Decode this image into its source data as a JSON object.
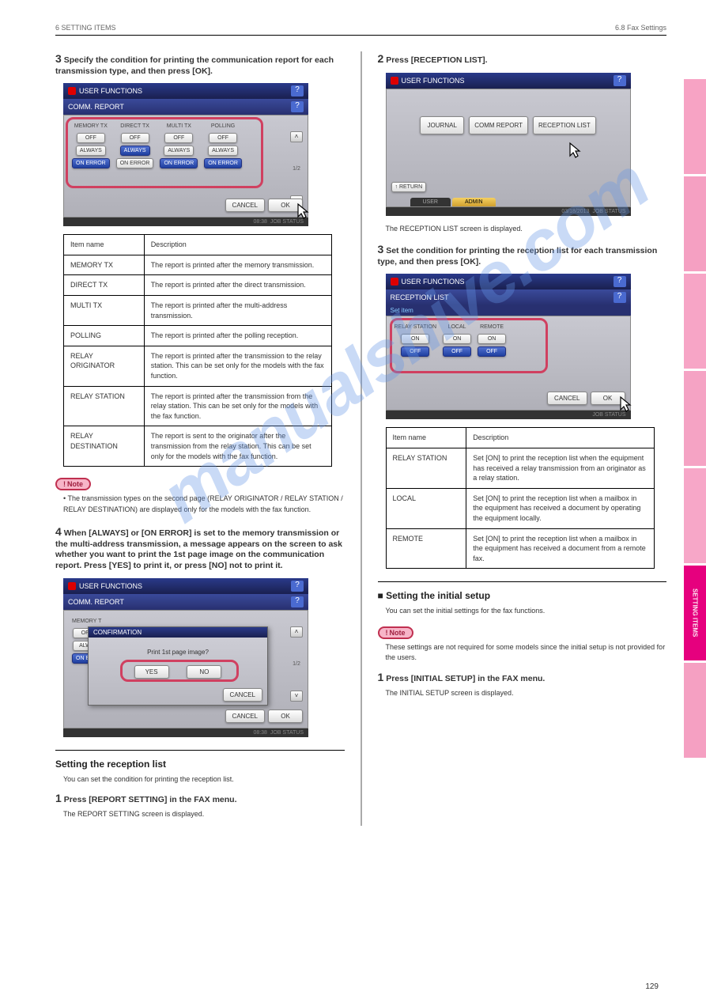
{
  "header": {
    "left": "6 SETTING ITEMS",
    "right": "6.8 Fax Settings"
  },
  "page_number": "129",
  "watermark": "manualshive.com",
  "tabs": [
    "",
    "",
    "",
    "",
    "",
    "SETTING ITEMS",
    ""
  ],
  "left": {
    "step3": {
      "num": "3",
      "text": "Specify the condition for printing the communication report for each transmission type, and then press [OK].",
      "shot": {
        "title": "USER FUNCTIONS",
        "subtitle": "COMM. REPORT",
        "cols": [
          {
            "h": "MEMORY TX",
            "b": [
              "OFF",
              "ALWAYS",
              "ON ERROR"
            ],
            "sel": 2
          },
          {
            "h": "DIRECT TX",
            "b": [
              "OFF",
              "ALWAYS",
              "ON ERROR"
            ],
            "sel": 1
          },
          {
            "h": "MULTI TX",
            "b": [
              "OFF",
              "ALWAYS",
              "ON ERROR"
            ],
            "sel": 2
          },
          {
            "h": "POLLING",
            "b": [
              "OFF",
              "ALWAYS",
              "ON ERROR"
            ],
            "sel": 2
          }
        ],
        "pager": "1/2",
        "cancel": "CANCEL",
        "ok": "OK",
        "footer_time": "08:38",
        "footer_status": "JOB STATUS"
      },
      "table": [
        [
          "Item name",
          "Description"
        ],
        [
          "MEMORY TX",
          "The report is printed after the memory transmission."
        ],
        [
          "DIRECT TX",
          "The report is printed after the direct transmission."
        ],
        [
          "MULTI TX",
          "The report is printed after the multi-address transmission."
        ],
        [
          "POLLING",
          "The report is printed after the polling reception."
        ],
        [
          "RELAY ORIGINATOR",
          "The report is printed after the transmission to the relay station. This can be set only for the models with the fax function."
        ],
        [
          "RELAY STATION",
          "The report is printed after the transmission from the relay station. This can be set only for the models with the fax function."
        ],
        [
          "RELAY DESTINATION",
          "The report is sent to the originator after the transmission from the relay station. This can be set only for the models with the fax function."
        ]
      ],
      "note_label": "Note",
      "note_body": "• The transmission types on the second page (RELAY ORIGINATOR / RELAY STATION / RELAY DESTINATION) are displayed only for the models with the fax function."
    },
    "step4": {
      "num": "4",
      "text": "When [ALWAYS] or [ON ERROR] is set to the memory transmission or the multi-address transmission, a message appears on the screen to ask whether you want to print the 1st page image on the communication report. Press [YES] to print it, or press [NO] not to print it.",
      "shot": {
        "title": "USER FUNCTIONS",
        "subtitle": "COMM. REPORT",
        "conf_title": "CONFIRMATION",
        "conf_msg": "Print 1st page image?",
        "yes": "YES",
        "no": "NO",
        "cancel": "CANCEL",
        "ok": "OK",
        "cols_partial": {
          "h": "MEMORY T",
          "b": [
            "OFF",
            "ALWA",
            "ON ERR"
          ]
        },
        "footer_time": "08:38",
        "footer_status": "JOB STATUS"
      }
    },
    "recep_h": "Setting the reception list",
    "recep_p": "You can set the condition for printing the reception list.",
    "step1": {
      "num": "1",
      "text": "Press [REPORT SETTING] in the FAX menu.",
      "sub": "The REPORT SETTING screen is displayed."
    }
  },
  "right": {
    "step2": {
      "num": "2",
      "text": "Press [RECEPTION LIST].",
      "shot": {
        "title": "USER FUNCTIONS",
        "btns": [
          "JOURNAL",
          "COMM REPORT",
          "RECEPTION LIST"
        ],
        "return": "RETURN",
        "tab_user": "USER",
        "tab_admin": "ADMIN",
        "footer_date": "03/18/2013",
        "footer_status": "JOB STATUS"
      },
      "sub": "The RECEPTION LIST screen is displayed."
    },
    "step3": {
      "num": "3",
      "text": "Set the condition for printing the reception list for each transmission type, and then press [OK].",
      "shot": {
        "title": "USER FUNCTIONS",
        "subtitle": "RECEPTION LIST",
        "setitem": "Set item",
        "cols": [
          {
            "h": "RELAY STATION",
            "b": [
              "ON",
              "OFF"
            ],
            "sel": 1
          },
          {
            "h": "LOCAL",
            "b": [
              "ON",
              "OFF"
            ],
            "sel": 1
          },
          {
            "h": "REMOTE",
            "b": [
              "ON",
              "OFF"
            ],
            "sel": 1
          }
        ],
        "cancel": "CANCEL",
        "ok": "OK",
        "footer_status": "JOB STATUS"
      },
      "table": [
        [
          "Item name",
          "Description"
        ],
        [
          "RELAY STATION",
          "Set [ON] to print the reception list when the equipment has received a relay transmission from an originator as a relay station."
        ],
        [
          "LOCAL",
          "Set [ON] to print the reception list when a mailbox in the equipment has received a document by operating the equipment locally."
        ],
        [
          "REMOTE",
          "Set [ON] to print the reception list when a mailbox in the equipment has received a document from a remote fax."
        ]
      ]
    },
    "initial_h": "■ Setting the initial setup",
    "initial_p": "You can set the initial settings for the fax functions.",
    "note_label": "Note",
    "note_body": "These settings are not required for some models since the initial setup is not provided for the users.",
    "step1": {
      "num": "1",
      "text": "Press [INITIAL SETUP] in the FAX menu.",
      "sub": "The INITIAL SETUP screen is displayed."
    }
  }
}
